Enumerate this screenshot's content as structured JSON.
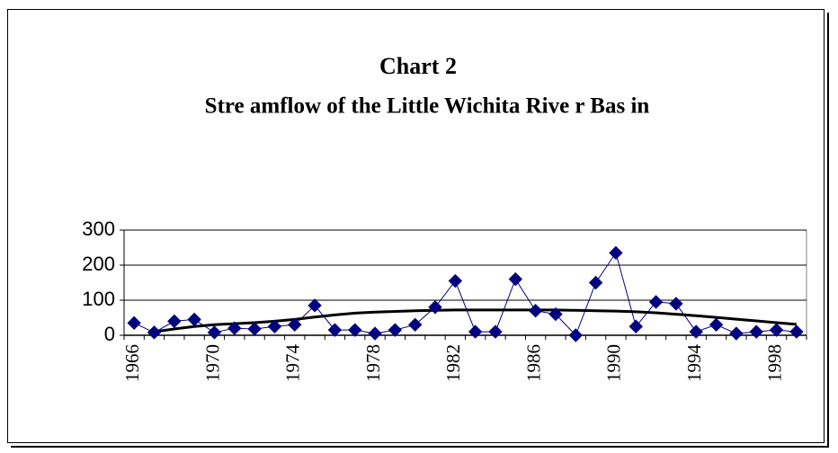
{
  "chart_data": {
    "type": "line",
    "title": "Chart 2",
    "subtitle": "Stre amflow of the  Little  Wichita Rive r Bas in",
    "categories": [
      "1966",
      null,
      null,
      null,
      "1970",
      null,
      null,
      null,
      "1974",
      null,
      null,
      null,
      "1978",
      null,
      null,
      null,
      "1982",
      null,
      null,
      null,
      "1986",
      null,
      null,
      null,
      "1990",
      null,
      null,
      null,
      "1994",
      null,
      null,
      null,
      "1998",
      null
    ],
    "values": [
      35,
      8,
      40,
      45,
      8,
      20,
      18,
      25,
      30,
      85,
      15,
      15,
      5,
      15,
      30,
      80,
      155,
      10,
      10,
      160,
      70,
      60,
      0,
      150,
      235,
      25,
      95,
      90,
      10,
      30,
      5,
      10,
      15,
      10
    ],
    "trend_values": [
      null,
      10,
      18,
      25,
      30,
      33,
      36,
      40,
      45,
      52,
      58,
      63,
      66,
      68,
      70,
      71,
      72,
      72,
      72,
      72,
      72,
      72,
      71,
      70,
      69,
      67,
      64,
      60,
      56,
      51,
      46,
      41,
      36,
      31
    ],
    "color": "#000080",
    "trend_color": "#000000",
    "ylim": [
      0,
      300
    ],
    "yticks": [
      0,
      100,
      200,
      300
    ],
    "grid": true
  }
}
